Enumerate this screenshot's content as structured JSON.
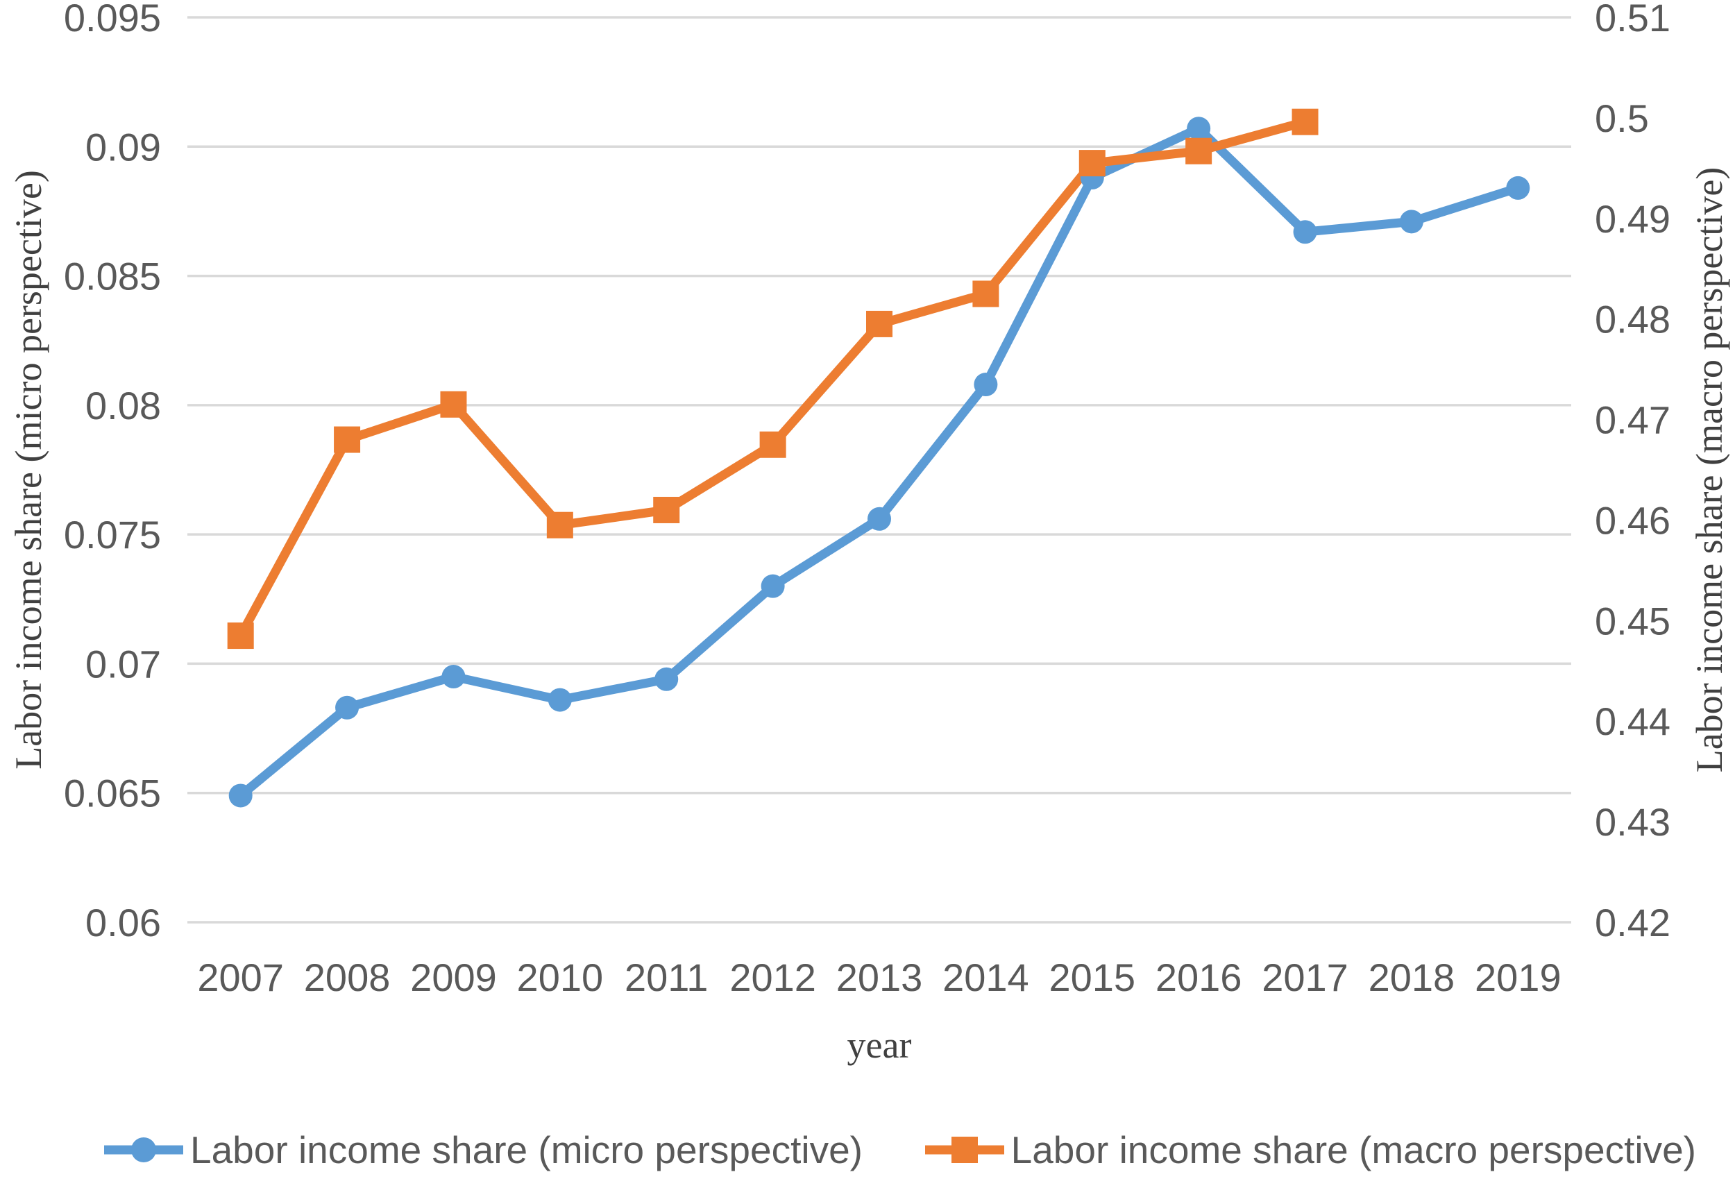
{
  "chart_data": {
    "type": "line",
    "title": "",
    "categories": [
      "2007",
      "2008",
      "2009",
      "2010",
      "2011",
      "2012",
      "2013",
      "2014",
      "2015",
      "2016",
      "2017",
      "2018",
      "2019"
    ],
    "series": [
      {
        "name": "Labor income share (micro perspective)",
        "yaxis": "left",
        "color": "#5B9BD5",
        "marker": "circle",
        "values": [
          0.0649,
          0.0683,
          0.0695,
          0.0686,
          0.0694,
          0.073,
          0.0756,
          0.0808,
          0.0888,
          0.0907,
          0.0867,
          0.0871,
          0.0884
        ]
      },
      {
        "name": "Labor income share (macro perspective)",
        "yaxis": "right",
        "color": "#ED7D31",
        "marker": "square",
        "values": [
          0.4485,
          0.468,
          0.4715,
          0.4595,
          0.461,
          0.4675,
          0.4795,
          0.4825,
          0.4955,
          0.4967,
          0.4996
        ]
      }
    ],
    "left_axis": {
      "title": "Labor income share (micro perspective)",
      "min": 0.06,
      "max": 0.095,
      "step": 0.005,
      "tick_labels": [
        "0.095",
        "0.09",
        "0.085",
        "0.08",
        "0.075",
        "0.07",
        "0.065",
        "0.06"
      ]
    },
    "right_axis": {
      "title": "Labor income share (macro perspective)",
      "min": 0.42,
      "max": 0.51,
      "step": 0.01,
      "tick_labels": [
        "0.51",
        "0.5",
        "0.49",
        "0.48",
        "0.47",
        "0.46",
        "0.45",
        "0.44",
        "0.43",
        "0.42"
      ]
    },
    "x_axis": {
      "title": "year"
    },
    "legend": {
      "position": "bottom",
      "entries": [
        "Labor income share (micro perspective)",
        "Labor income share (macro perspective)"
      ]
    },
    "grid": true,
    "gridline_color": "#D9D9D9",
    "tick_label_color": "#595959",
    "axis_title_color": "#404040"
  }
}
